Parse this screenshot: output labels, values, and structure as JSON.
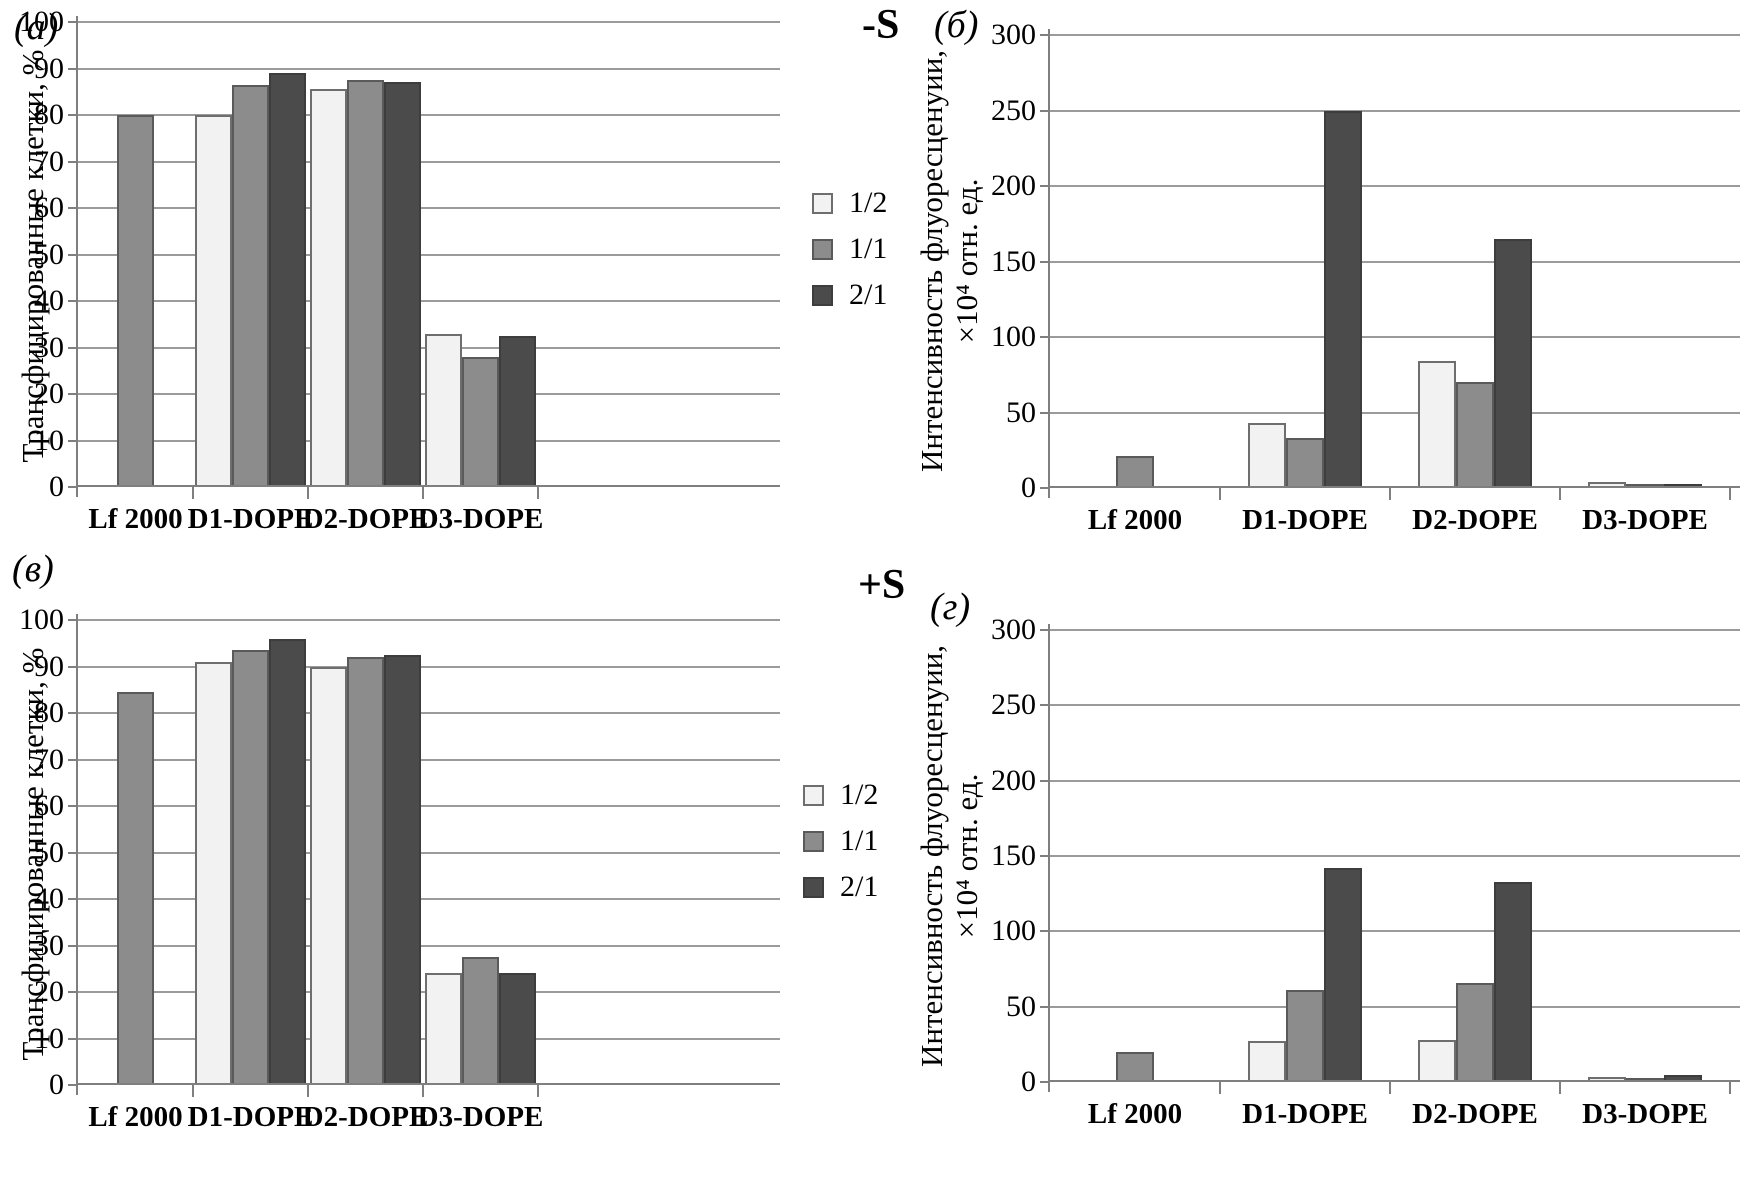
{
  "figure": {
    "condition_top": "-S",
    "condition_bottom": "+S"
  },
  "colors": {
    "background": "#ffffff",
    "gridline": "#9b9b9b",
    "axis": "#7f7f7f",
    "text": "#000000"
  },
  "legend": {
    "items": [
      {
        "label": "1/2",
        "fill": "#f2f2f2",
        "border": "#6e6e6e"
      },
      {
        "label": "1/1",
        "fill": "#8c8c8c",
        "border": "#5a5a5a"
      },
      {
        "label": "2/1",
        "fill": "#4b4b4b",
        "border": "#3d3d3d"
      }
    ]
  },
  "chart_data": [
    {
      "id": "a",
      "type": "bar",
      "panel_label": "(а)",
      "condition": "-S",
      "ylabel_lines": [
        "Трансфицированные клетки, %"
      ],
      "ymax": 100,
      "ystep": 10,
      "yticks": [
        0,
        10,
        20,
        30,
        40,
        50,
        60,
        70,
        80,
        90,
        100
      ],
      "categories": [
        "Lf 2000",
        "D1-DOPE",
        "D2-DOPE",
        "D3-DOPE"
      ],
      "series": [
        {
          "name": "1/2",
          "values": [
            null,
            80,
            85.5,
            33
          ]
        },
        {
          "name": "1/1",
          "values": [
            80,
            86.5,
            87.5,
            28
          ]
        },
        {
          "name": "2/1",
          "values": [
            null,
            89,
            87,
            32.5
          ]
        }
      ],
      "legend_position": "right-of-plot",
      "grid": true
    },
    {
      "id": "b",
      "type": "bar",
      "panel_label": "(б)",
      "condition": "-S",
      "ylabel_lines": [
        "Интенсивность флуоресценуии,",
        "×10⁴ отн. ед."
      ],
      "ymax": 300,
      "ystep": 50,
      "yticks": [
        0,
        50,
        100,
        150,
        200,
        250,
        300
      ],
      "categories": [
        "Lf 2000",
        "D1-DOPE",
        "D2-DOPE",
        "D3-DOPE"
      ],
      "series": [
        {
          "name": "1/2",
          "values": [
            null,
            43,
            84,
            4
          ]
        },
        {
          "name": "1/1",
          "values": [
            21,
            33,
            70,
            1.5
          ]
        },
        {
          "name": "2/1",
          "values": [
            null,
            250,
            165,
            1.5
          ]
        }
      ],
      "legend_position": "left-of-plot",
      "grid": true
    },
    {
      "id": "v",
      "type": "bar",
      "panel_label": "(в)",
      "condition": "+S",
      "ylabel_lines": [
        "Трансфицированные клетки, %"
      ],
      "ymax": 100,
      "ystep": 10,
      "yticks": [
        0,
        10,
        20,
        30,
        40,
        50,
        60,
        70,
        80,
        90,
        100
      ],
      "categories": [
        "Lf 2000",
        "D1-DOPE",
        "D2-DOPE",
        "D3-DOPE"
      ],
      "series": [
        {
          "name": "1/2",
          "values": [
            null,
            91,
            90,
            24
          ]
        },
        {
          "name": "1/1",
          "values": [
            84.5,
            93.5,
            92,
            27.5
          ]
        },
        {
          "name": "2/1",
          "values": [
            null,
            96,
            92.5,
            24
          ]
        }
      ],
      "legend_position": "right-of-plot",
      "grid": true
    },
    {
      "id": "g",
      "type": "bar",
      "panel_label": "(г)",
      "condition": "+S",
      "ylabel_lines": [
        "Интенсивность флуоресценуии,",
        "×10⁴ отн. ед."
      ],
      "ymax": 300,
      "ystep": 50,
      "yticks": [
        0,
        50,
        100,
        150,
        200,
        250,
        300
      ],
      "categories": [
        "Lf 2000",
        "D1-DOPE",
        "D2-DOPE",
        "D3-DOPE"
      ],
      "series": [
        {
          "name": "1/2",
          "values": [
            null,
            27,
            28,
            3
          ]
        },
        {
          "name": "1/1",
          "values": [
            20,
            61,
            66,
            1.5
          ]
        },
        {
          "name": "2/1",
          "values": [
            null,
            142,
            133,
            4.5
          ]
        }
      ],
      "legend_position": "left-of-plot",
      "grid": true
    }
  ]
}
